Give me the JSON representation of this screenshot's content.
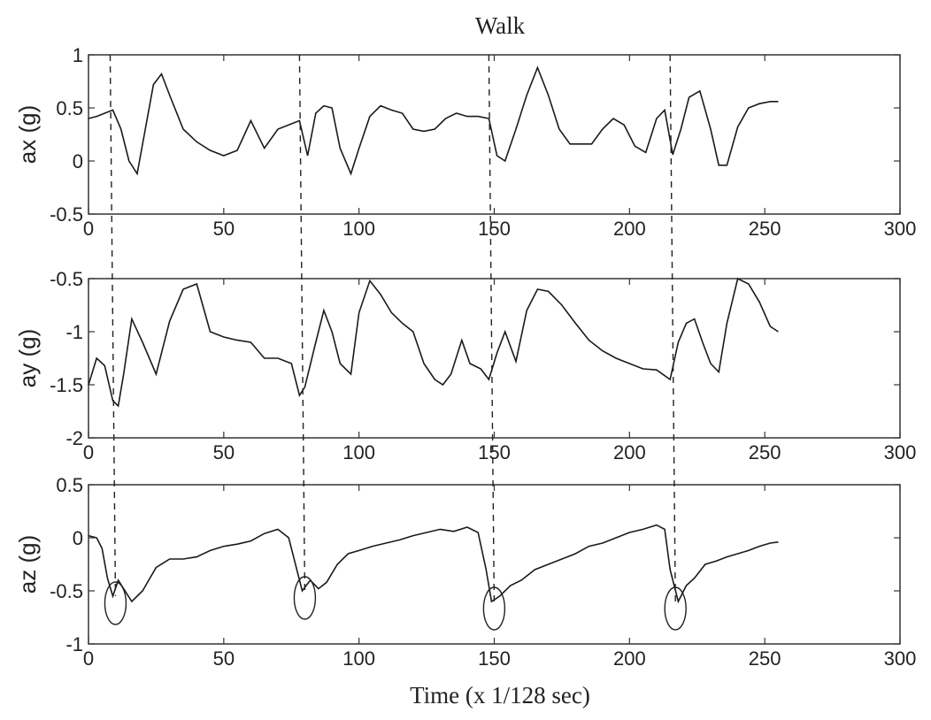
{
  "chart_data": {
    "type": "line",
    "title": "Walk",
    "xlabel": "Time (x 1/128 sec)",
    "xlim": [
      0,
      300
    ],
    "xticks": [
      0,
      50,
      100,
      150,
      200,
      250,
      300
    ],
    "step_markers_x": [
      8,
      78,
      148,
      215
    ],
    "colors": {
      "line": "#1a1a1a",
      "axes": "#333333",
      "marker": "#222222"
    },
    "subplots": [
      {
        "ylabel": "ax (g)",
        "ylim": [
          -0.5,
          1
        ],
        "yticks": [
          -0.5,
          0,
          0.5,
          1
        ],
        "x": [
          0,
          3,
          6,
          9,
          12,
          15,
          18,
          21,
          24,
          27,
          30,
          35,
          40,
          45,
          50,
          55,
          60,
          65,
          70,
          75,
          78,
          81,
          84,
          87,
          90,
          93,
          97,
          100,
          104,
          108,
          112,
          116,
          120,
          124,
          128,
          132,
          136,
          140,
          144,
          148,
          151,
          154,
          158,
          162,
          166,
          170,
          174,
          178,
          182,
          186,
          190,
          194,
          198,
          202,
          206,
          210,
          213,
          216,
          219,
          222,
          226,
          230,
          233,
          236,
          240,
          244,
          248,
          252,
          255
        ],
        "y": [
          0.4,
          0.42,
          0.45,
          0.48,
          0.3,
          0.0,
          -0.12,
          0.3,
          0.72,
          0.82,
          0.62,
          0.3,
          0.18,
          0.1,
          0.05,
          0.1,
          0.38,
          0.12,
          0.3,
          0.35,
          0.38,
          0.05,
          0.45,
          0.52,
          0.5,
          0.12,
          -0.12,
          0.12,
          0.42,
          0.52,
          0.48,
          0.45,
          0.3,
          0.28,
          0.3,
          0.4,
          0.45,
          0.42,
          0.42,
          0.4,
          0.05,
          0.0,
          0.3,
          0.62,
          0.88,
          0.62,
          0.3,
          0.16,
          0.16,
          0.16,
          0.3,
          0.4,
          0.34,
          0.14,
          0.08,
          0.4,
          0.48,
          0.06,
          0.3,
          0.6,
          0.66,
          0.3,
          -0.04,
          -0.04,
          0.32,
          0.5,
          0.54,
          0.56,
          0.56
        ]
      },
      {
        "ylabel": "ay (g)",
        "ylim": [
          -2,
          -0.5
        ],
        "yticks": [
          -2,
          -1.5,
          -1,
          -0.5
        ],
        "x": [
          0,
          3,
          6,
          9,
          11,
          13,
          16,
          20,
          25,
          30,
          35,
          40,
          45,
          50,
          55,
          60,
          65,
          70,
          75,
          78,
          80,
          84,
          87,
          90,
          93,
          97,
          100,
          104,
          108,
          112,
          116,
          120,
          124,
          128,
          131,
          134,
          138,
          141,
          145,
          148,
          151,
          154,
          158,
          162,
          166,
          170,
          175,
          180,
          185,
          190,
          195,
          200,
          205,
          210,
          215,
          218,
          221,
          224,
          227,
          230,
          233,
          236,
          240,
          244,
          248,
          252,
          255
        ],
        "y": [
          -1.5,
          -1.25,
          -1.32,
          -1.65,
          -1.7,
          -1.4,
          -0.88,
          -1.1,
          -1.4,
          -0.9,
          -0.6,
          -0.55,
          -1.0,
          -1.05,
          -1.08,
          -1.1,
          -1.25,
          -1.25,
          -1.3,
          -1.6,
          -1.52,
          -1.1,
          -0.8,
          -1.0,
          -1.3,
          -1.4,
          -0.82,
          -0.52,
          -0.65,
          -0.82,
          -0.92,
          -1.0,
          -1.3,
          -1.45,
          -1.5,
          -1.4,
          -1.08,
          -1.3,
          -1.35,
          -1.45,
          -1.2,
          -1.0,
          -1.28,
          -0.8,
          -0.6,
          -0.62,
          -0.75,
          -0.92,
          -1.08,
          -1.18,
          -1.25,
          -1.3,
          -1.35,
          -1.36,
          -1.45,
          -1.1,
          -0.92,
          -0.88,
          -1.1,
          -1.3,
          -1.38,
          -0.92,
          -0.5,
          -0.55,
          -0.72,
          -0.95,
          -1.0
        ]
      },
      {
        "ylabel": "az (g)",
        "ylim": [
          -1,
          0.5
        ],
        "yticks": [
          -1,
          -0.5,
          0,
          0.5
        ],
        "x": [
          0,
          3,
          5,
          7,
          9,
          11,
          13,
          16,
          20,
          25,
          30,
          35,
          40,
          45,
          50,
          55,
          60,
          65,
          70,
          74,
          77,
          79,
          82,
          85,
          88,
          92,
          96,
          100,
          105,
          110,
          115,
          120,
          125,
          130,
          135,
          140,
          144,
          147,
          149,
          152,
          156,
          160,
          165,
          170,
          175,
          180,
          185,
          190,
          195,
          200,
          205,
          210,
          213,
          215,
          218,
          221,
          224,
          228,
          232,
          236,
          240,
          244,
          248,
          252,
          255
        ],
        "y": [
          0.02,
          0.0,
          -0.1,
          -0.38,
          -0.55,
          -0.4,
          -0.48,
          -0.6,
          -0.5,
          -0.28,
          -0.2,
          -0.2,
          -0.18,
          -0.12,
          -0.08,
          -0.06,
          -0.03,
          0.04,
          0.08,
          0.0,
          -0.3,
          -0.5,
          -0.4,
          -0.48,
          -0.42,
          -0.25,
          -0.15,
          -0.12,
          -0.08,
          -0.05,
          -0.02,
          0.02,
          0.05,
          0.08,
          0.06,
          0.1,
          0.05,
          -0.3,
          -0.6,
          -0.55,
          -0.45,
          -0.4,
          -0.3,
          -0.25,
          -0.2,
          -0.15,
          -0.08,
          -0.05,
          0.0,
          0.05,
          0.08,
          0.12,
          0.08,
          -0.3,
          -0.6,
          -0.45,
          -0.38,
          -0.25,
          -0.22,
          -0.18,
          -0.15,
          -0.12,
          -0.08,
          -0.05,
          -0.04
        ]
      }
    ]
  }
}
